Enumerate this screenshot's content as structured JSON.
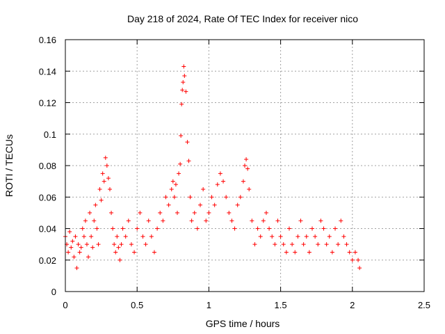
{
  "chart_data": {
    "type": "scatter",
    "title": "Day 218 of 2024, Rate Of TEC Index for receiver nico",
    "xlabel": "GPS time / hours",
    "ylabel": "ROTI / TECUs",
    "xlim": [
      0,
      2.5
    ],
    "ylim": [
      0,
      0.16
    ],
    "xticks": [
      0,
      0.5,
      1,
      1.5,
      2,
      2.5
    ],
    "xtick_labels": [
      "0",
      "0.5",
      "1",
      "1.5",
      "2",
      "2.5"
    ],
    "yticks": [
      0,
      0.02,
      0.04,
      0.06,
      0.08,
      0.1,
      0.12,
      0.14,
      0.16
    ],
    "ytick_labels": [
      "0",
      "0.02",
      "0.04",
      "0.06",
      "0.08",
      "0.1",
      "0.12",
      "0.14",
      "0.16"
    ],
    "grid": true,
    "marker": "+",
    "marker_color": "#ff0000",
    "series": [
      {
        "name": "ROTI",
        "x": [
          0.0,
          0.01,
          0.02,
          0.03,
          0.04,
          0.05,
          0.06,
          0.07,
          0.08,
          0.09,
          0.1,
          0.11,
          0.12,
          0.13,
          0.14,
          0.15,
          0.16,
          0.17,
          0.18,
          0.19,
          0.2,
          0.21,
          0.22,
          0.23,
          0.24,
          0.25,
          0.26,
          0.27,
          0.28,
          0.29,
          0.3,
          0.31,
          0.32,
          0.33,
          0.34,
          0.35,
          0.36,
          0.37,
          0.38,
          0.39,
          0.4,
          0.42,
          0.44,
          0.46,
          0.48,
          0.5,
          0.52,
          0.54,
          0.56,
          0.58,
          0.6,
          0.62,
          0.64,
          0.66,
          0.68,
          0.7,
          0.72,
          0.74,
          0.75,
          0.76,
          0.77,
          0.78,
          0.79,
          0.8,
          0.805,
          0.81,
          0.815,
          0.82,
          0.825,
          0.83,
          0.84,
          0.85,
          0.86,
          0.87,
          0.88,
          0.9,
          0.92,
          0.94,
          0.96,
          0.98,
          1.0,
          1.02,
          1.04,
          1.06,
          1.08,
          1.1,
          1.12,
          1.14,
          1.16,
          1.18,
          1.2,
          1.22,
          1.24,
          1.25,
          1.26,
          1.27,
          1.28,
          1.3,
          1.32,
          1.34,
          1.36,
          1.38,
          1.4,
          1.42,
          1.44,
          1.46,
          1.48,
          1.5,
          1.52,
          1.54,
          1.56,
          1.58,
          1.6,
          1.62,
          1.64,
          1.66,
          1.68,
          1.7,
          1.72,
          1.74,
          1.76,
          1.78,
          1.8,
          1.82,
          1.84,
          1.86,
          1.88,
          1.9,
          1.92,
          1.94,
          1.96,
          1.98,
          2.0,
          2.02,
          2.04,
          2.05
        ],
        "y": [
          0.035,
          0.03,
          0.025,
          0.038,
          0.028,
          0.032,
          0.022,
          0.035,
          0.015,
          0.03,
          0.025,
          0.028,
          0.04,
          0.035,
          0.045,
          0.03,
          0.022,
          0.05,
          0.035,
          0.028,
          0.045,
          0.055,
          0.04,
          0.03,
          0.065,
          0.058,
          0.075,
          0.07,
          0.085,
          0.08,
          0.072,
          0.065,
          0.05,
          0.04,
          0.03,
          0.025,
          0.035,
          0.028,
          0.02,
          0.03,
          0.04,
          0.035,
          0.045,
          0.03,
          0.025,
          0.04,
          0.05,
          0.035,
          0.03,
          0.045,
          0.035,
          0.025,
          0.04,
          0.05,
          0.045,
          0.06,
          0.055,
          0.065,
          0.07,
          0.06,
          0.068,
          0.05,
          0.075,
          0.081,
          0.099,
          0.119,
          0.128,
          0.133,
          0.143,
          0.137,
          0.127,
          0.095,
          0.083,
          0.06,
          0.045,
          0.05,
          0.04,
          0.055,
          0.065,
          0.045,
          0.05,
          0.06,
          0.055,
          0.068,
          0.075,
          0.07,
          0.06,
          0.05,
          0.045,
          0.04,
          0.055,
          0.06,
          0.07,
          0.08,
          0.084,
          0.078,
          0.065,
          0.045,
          0.03,
          0.04,
          0.035,
          0.045,
          0.05,
          0.04,
          0.035,
          0.03,
          0.045,
          0.035,
          0.03,
          0.025,
          0.04,
          0.03,
          0.025,
          0.035,
          0.045,
          0.03,
          0.035,
          0.025,
          0.04,
          0.035,
          0.03,
          0.045,
          0.04,
          0.03,
          0.035,
          0.025,
          0.04,
          0.03,
          0.045,
          0.035,
          0.03,
          0.025,
          0.02,
          0.025,
          0.02,
          0.015
        ]
      }
    ]
  }
}
